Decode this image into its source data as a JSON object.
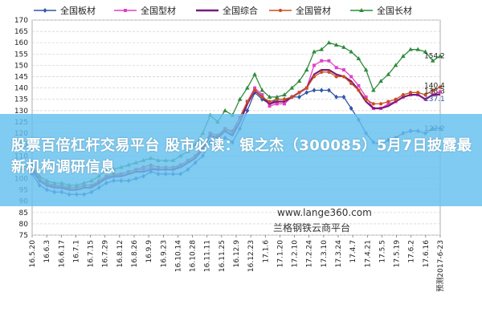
{
  "chart_data": {
    "type": "line",
    "title": "",
    "xlabel": "",
    "ylabel": "",
    "ylim": [
      75,
      170
    ],
    "yticks": [
      75,
      80,
      85,
      90,
      95,
      100,
      105,
      110,
      115,
      120,
      125,
      130,
      135,
      140,
      145,
      150,
      155,
      160,
      165,
      170
    ],
    "grid": true,
    "legend_position": "top",
    "x_tick_labels": [
      "16.5.20",
      "16.6.3",
      "16.6.17",
      "16.7.1",
      "16.7.15",
      "16.7.29",
      "16.8.12",
      "16.8.26",
      "16.9.9",
      "16.9.23",
      "16.10.14",
      "16.10.28",
      "16.11.11",
      "16.11.25",
      "16.12.9",
      "16.12.23",
      "17.1.6",
      "17.1.20",
      "17.2.10",
      "17.2.24",
      "17.3.10",
      "17.3.24",
      "17.4.7",
      "17.4.21",
      "17.5.5",
      "17.5.19",
      "17.6.2",
      "17.6.16",
      "预测2017-6-23"
    ],
    "x_count": 56,
    "series": [
      {
        "name": "全国板材",
        "color": "#3355aa",
        "marker": "diamond",
        "values": [
          102,
          97,
          95,
          94,
          94,
          93,
          93,
          93,
          94,
          96,
          98,
          99,
          99,
          99,
          100,
          101,
          103,
          102,
          102,
          102,
          102,
          104,
          107,
          110,
          116,
          114,
          118,
          116,
          122,
          130,
          138,
          135,
          133,
          135,
          135,
          136,
          136,
          138,
          139,
          139,
          139,
          136,
          136,
          131,
          126,
          120,
          116,
          115,
          117,
          118,
          120,
          121,
          121,
          120,
          122,
          122.2
        ]
      },
      {
        "name": "全国型材",
        "color": "#e040c8",
        "marker": "square",
        "values": [
          103,
          99,
          97,
          97,
          96,
          96,
          96,
          97,
          97,
          98,
          101,
          101,
          102,
          103,
          104,
          104,
          105,
          104,
          104,
          104,
          106,
          108,
          110,
          114,
          120,
          119,
          122,
          120,
          127,
          134,
          140,
          137,
          132,
          133,
          133,
          136,
          138,
          140,
          150,
          152,
          152,
          149,
          148,
          145,
          141,
          136,
          131,
          131,
          133,
          134,
          136,
          137,
          137,
          135,
          137,
          138.3
        ]
      },
      {
        "name": "全国综合",
        "color": "#7a1a7a",
        "marker": "none",
        "values": [
          104,
          99,
          97,
          96,
          96,
          95,
          95,
          96,
          96,
          98,
          100,
          101,
          101,
          102,
          103,
          103,
          104,
          104,
          104,
          104,
          105,
          107,
          109,
          113,
          119,
          118,
          121,
          119,
          125,
          133,
          139,
          136,
          133,
          134,
          134,
          136,
          138,
          140,
          146,
          148,
          148,
          146,
          145,
          143,
          139,
          134,
          131,
          131,
          132,
          134,
          136,
          137,
          137,
          135,
          137,
          137.1
        ]
      },
      {
        "name": "全国管材",
        "color": "#c8501e",
        "marker": "circle",
        "values": [
          105,
          100,
          98,
          97,
          97,
          96,
          96,
          97,
          97,
          99,
          101,
          102,
          102,
          103,
          104,
          105,
          106,
          105,
          105,
          105,
          106,
          108,
          110,
          114,
          120,
          119,
          122,
          121,
          127,
          134,
          139,
          136,
          134,
          135,
          135,
          136,
          138,
          140,
          145,
          147,
          147,
          145,
          145,
          142,
          139,
          135,
          133,
          133,
          134,
          135,
          137,
          138,
          138,
          137,
          139,
          140.4
        ]
      },
      {
        "name": "全国长材",
        "color": "#2e8b3c",
        "marker": "triangle",
        "values": [
          106,
          101,
          99,
          98,
          98,
          97,
          97,
          98,
          99,
          101,
          104,
          104,
          105,
          106,
          107,
          108,
          109,
          108,
          108,
          108,
          110,
          112,
          115,
          120,
          128,
          125,
          130,
          128,
          135,
          140,
          146,
          139,
          136,
          136,
          137,
          140,
          143,
          148,
          156,
          157,
          160,
          159,
          158,
          156,
          153,
          148,
          139,
          143,
          146,
          150,
          154,
          157,
          157,
          156,
          152,
          154.2
        ]
      }
    ],
    "end_labels": [
      {
        "series": 4,
        "text": "154.2"
      },
      {
        "series": 3,
        "text": "140.4"
      },
      {
        "series": 1,
        "text": "138.3"
      },
      {
        "series": 2,
        "text": "137.1"
      },
      {
        "series": 0,
        "text": "122.2"
      }
    ]
  },
  "overlay": {
    "headline": "股票百倍杠杆交易平台 股市必读：银之杰（300085）5月7日披露最新机构调研信息",
    "watermark_url": "www.lange360.com",
    "watermark_name": "兰格钢铁云商平台"
  }
}
